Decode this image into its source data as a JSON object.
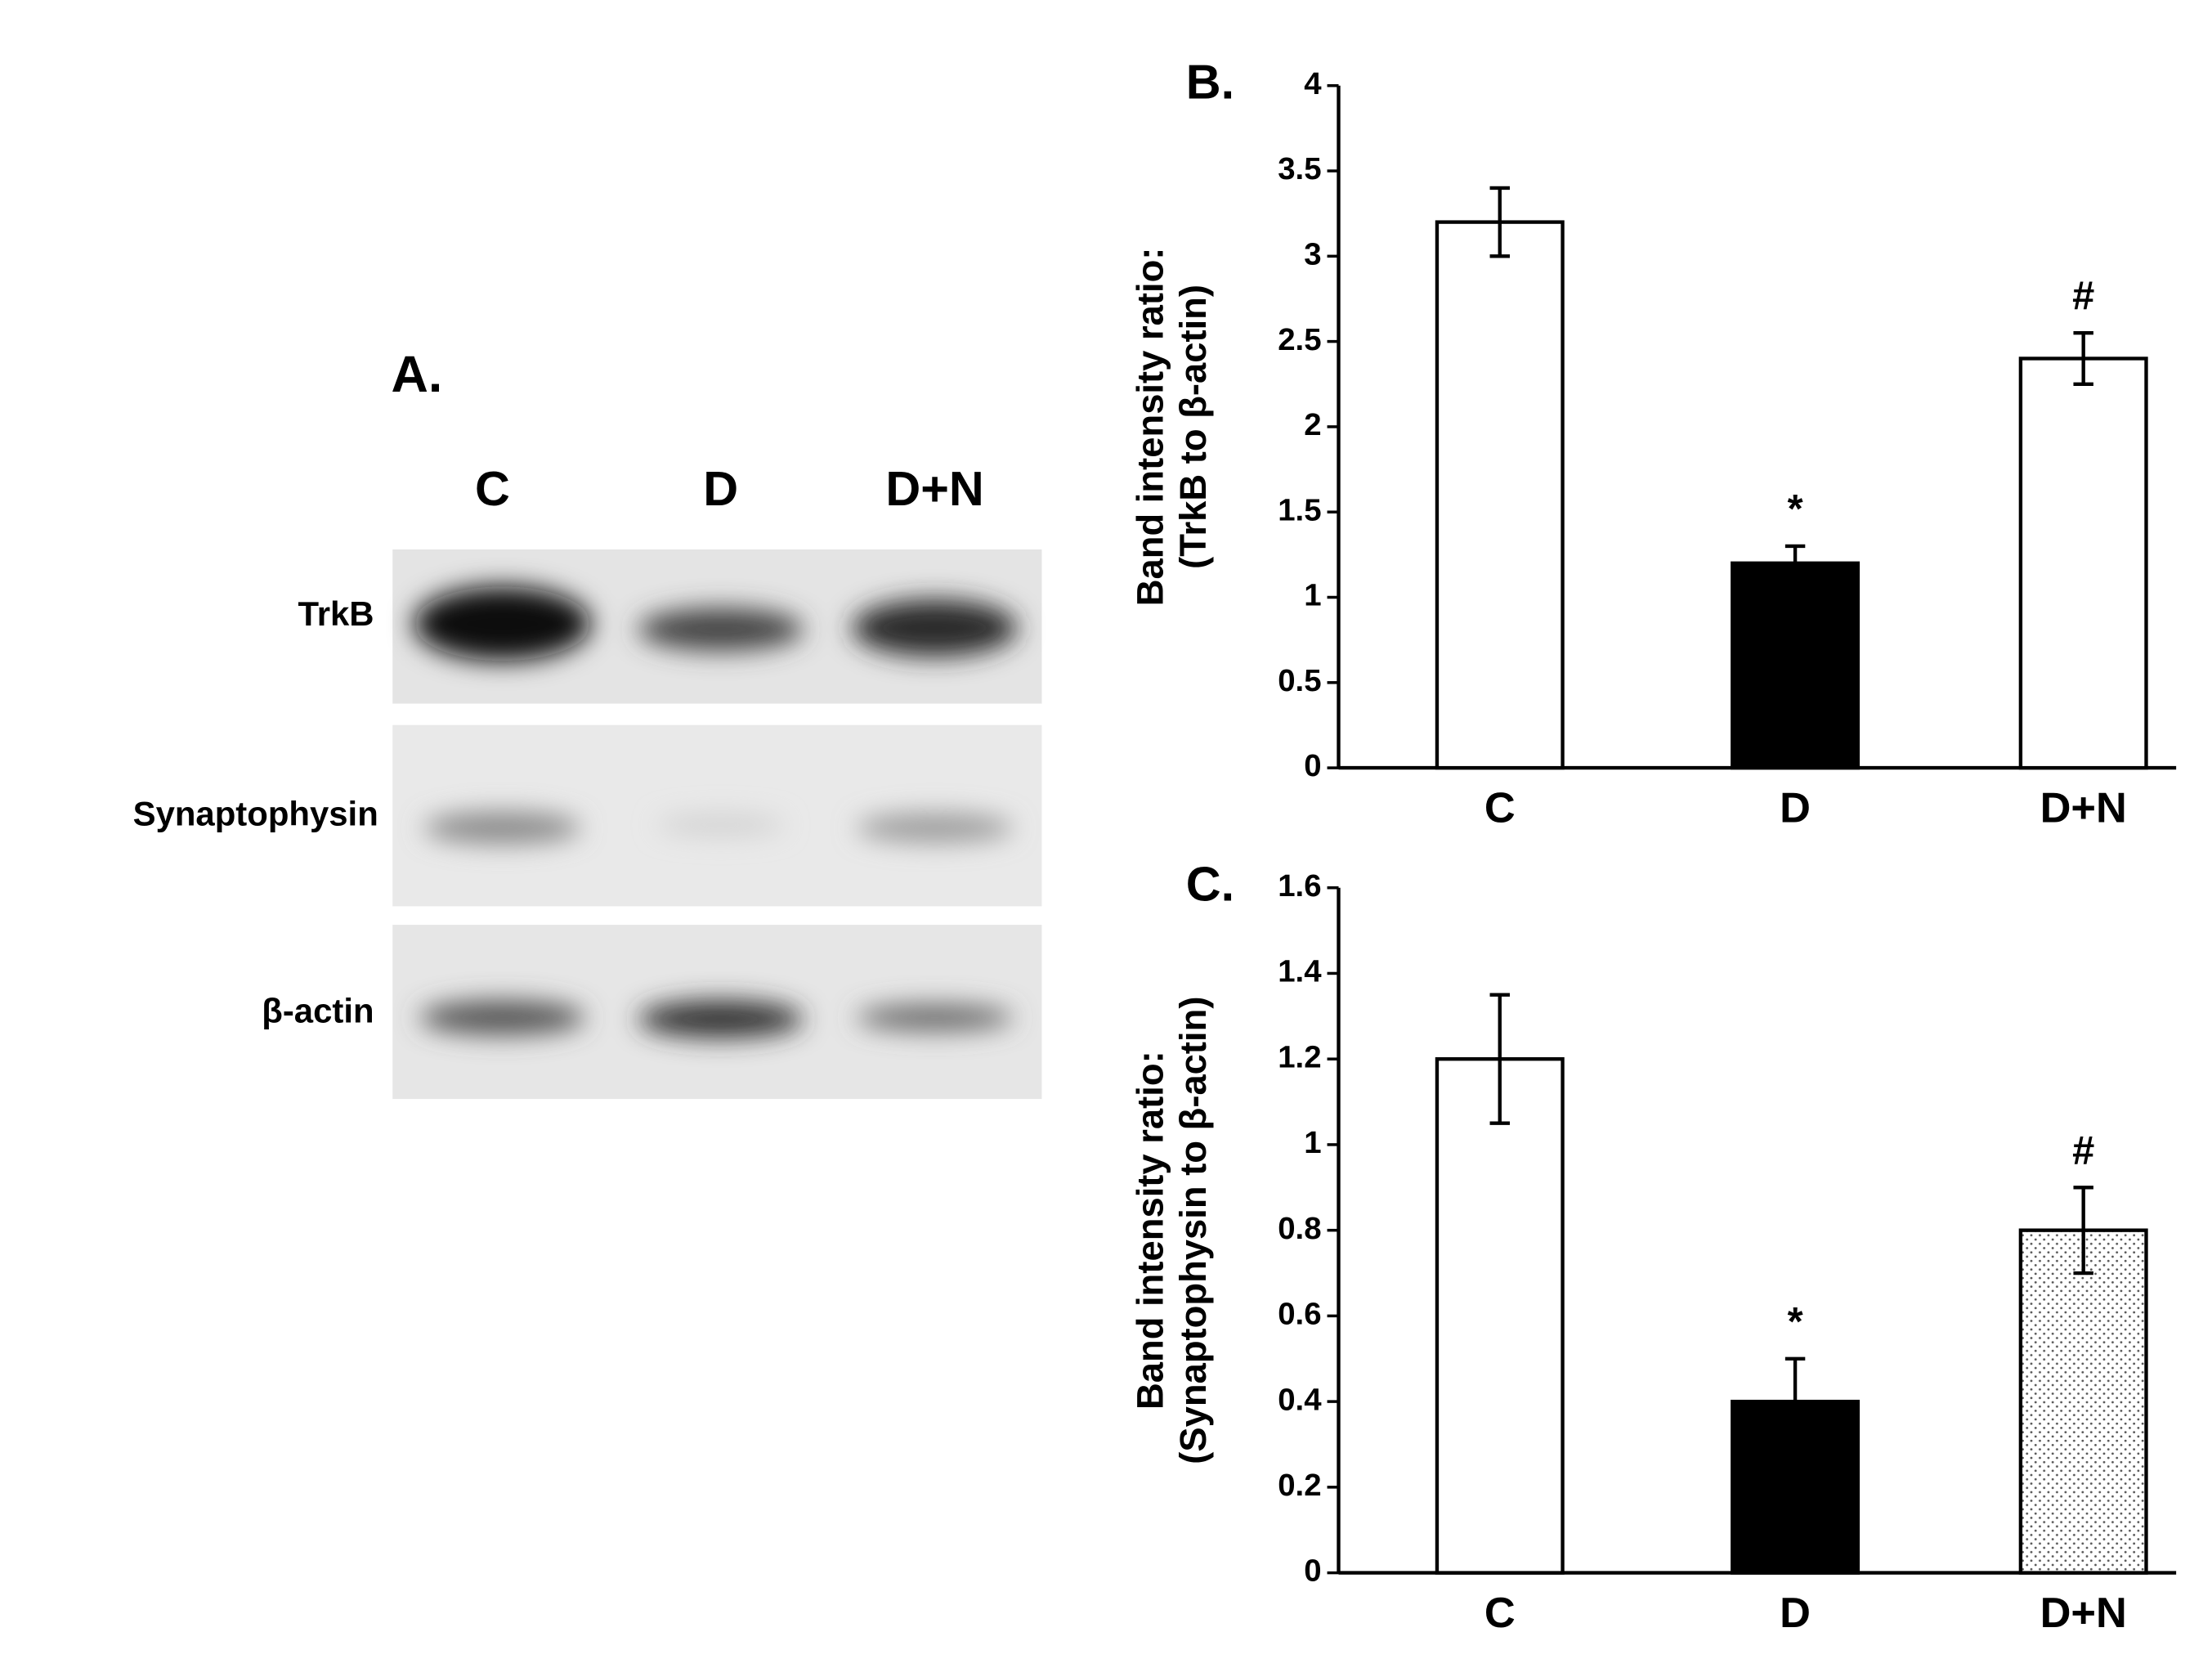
{
  "blot": {
    "panel": "A.",
    "lanes": [
      "C",
      "D",
      "D+N"
    ],
    "rows": [
      "TrkB",
      "Synaptophysin",
      "β-actin"
    ]
  },
  "chart_data": [
    {
      "type": "bar",
      "panel": "B.",
      "ylabel": [
        "Band intensity ratio:",
        "(TrkB to β-actin)"
      ],
      "categories": [
        "C",
        "D",
        "D+N"
      ],
      "values": [
        3.2,
        1.2,
        2.4
      ],
      "errors": [
        0.2,
        0.1,
        0.15
      ],
      "markers": [
        null,
        "*",
        "#"
      ],
      "fills": [
        "#ffffff",
        "#000000",
        "#ffffff"
      ],
      "ylim": [
        0,
        4
      ],
      "yticks": [
        0,
        0.5,
        1,
        1.5,
        2,
        2.5,
        3,
        3.5,
        4
      ]
    },
    {
      "type": "bar",
      "panel": "C.",
      "ylabel": [
        "Band intensity ratio:",
        "(Synaptophysin to β-actin)"
      ],
      "categories": [
        "C",
        "D",
        "D+N"
      ],
      "values": [
        1.2,
        0.4,
        0.8
      ],
      "errors": [
        0.15,
        0.1,
        0.1
      ],
      "markers": [
        null,
        "*",
        "#"
      ],
      "fills": [
        "#ffffff",
        "#000000",
        "dotted"
      ],
      "ylim": [
        0,
        1.6
      ],
      "yticks": [
        0,
        0.2,
        0.4,
        0.6,
        0.8,
        1,
        1.2,
        1.4,
        1.6
      ]
    }
  ]
}
